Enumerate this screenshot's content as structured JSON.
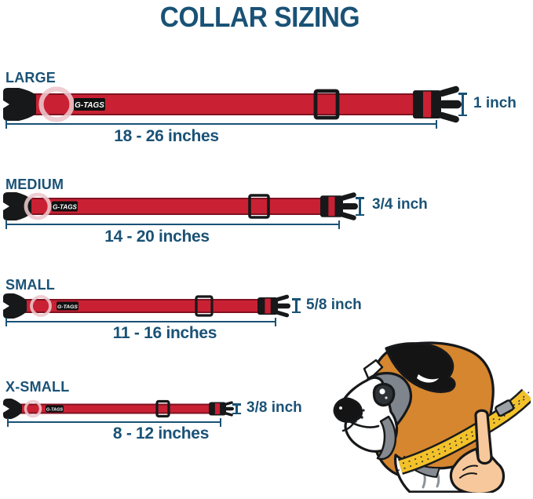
{
  "title": "COLLAR SIZING",
  "brand_label": "G-TAGS",
  "colors": {
    "text": "#1a5276",
    "collar": "#c92133",
    "buckle": "#17181a",
    "tape": "#f3c22a"
  },
  "rows": [
    {
      "size": "LARGE",
      "range": "18 - 26 inches",
      "width": "1 inch"
    },
    {
      "size": "MEDIUM",
      "range": "14 - 20 inches",
      "width": "3/4 inch"
    },
    {
      "size": "SMALL",
      "range": "11 - 16 inches",
      "width": "5/8 inch"
    },
    {
      "size": "X-SMALL",
      "range": "8 - 12 inches",
      "width": "3/8 inch"
    }
  ],
  "illustration": {
    "name": "boxer-dog-neck-measurement",
    "elements": [
      "boxer-dog-head",
      "measuring-tape",
      "hand-pointing-finger"
    ]
  }
}
